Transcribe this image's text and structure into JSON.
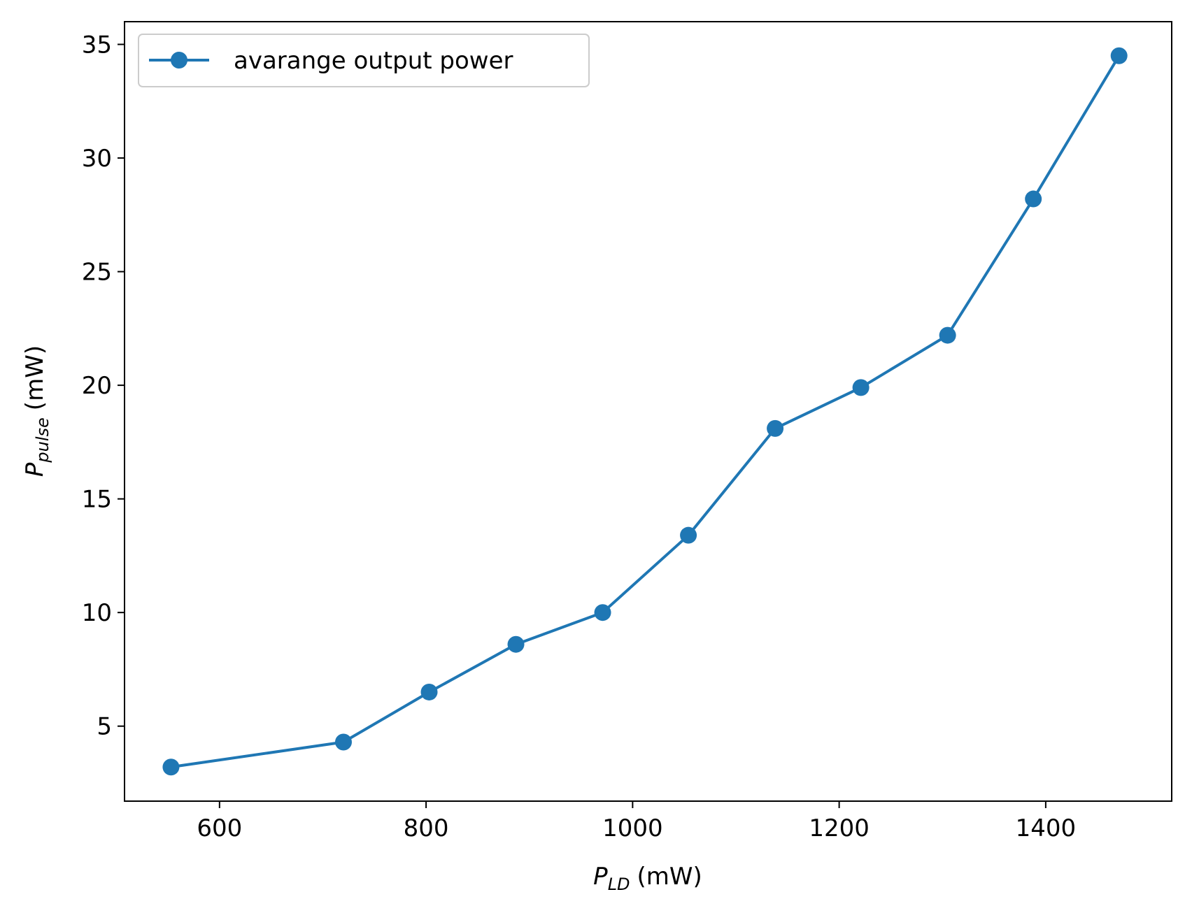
{
  "chart_data": {
    "type": "line",
    "title": "",
    "xlabel": {
      "symbol": "P",
      "subscript": "LD",
      "unit": "(mW)"
    },
    "ylabel": {
      "symbol": "P",
      "subscript": "pulse",
      "unit": "(mW)"
    },
    "xlim": [
      508,
      1522
    ],
    "ylim": [
      1.7,
      36.0
    ],
    "xticks": [
      600,
      800,
      1000,
      1200,
      1400
    ],
    "yticks": [
      5,
      10,
      15,
      20,
      25,
      30,
      35
    ],
    "grid": false,
    "legend": {
      "position": "upper-left"
    },
    "series": [
      {
        "name": "avarange output power",
        "color": "#1f77b4",
        "marker": "circle",
        "x": [
          553,
          720,
          803,
          887,
          971,
          1054,
          1138,
          1221,
          1305,
          1388,
          1471
        ],
        "y": [
          3.2,
          4.3,
          6.5,
          8.6,
          10.0,
          13.4,
          18.1,
          19.9,
          22.2,
          28.2,
          34.5
        ]
      }
    ]
  }
}
